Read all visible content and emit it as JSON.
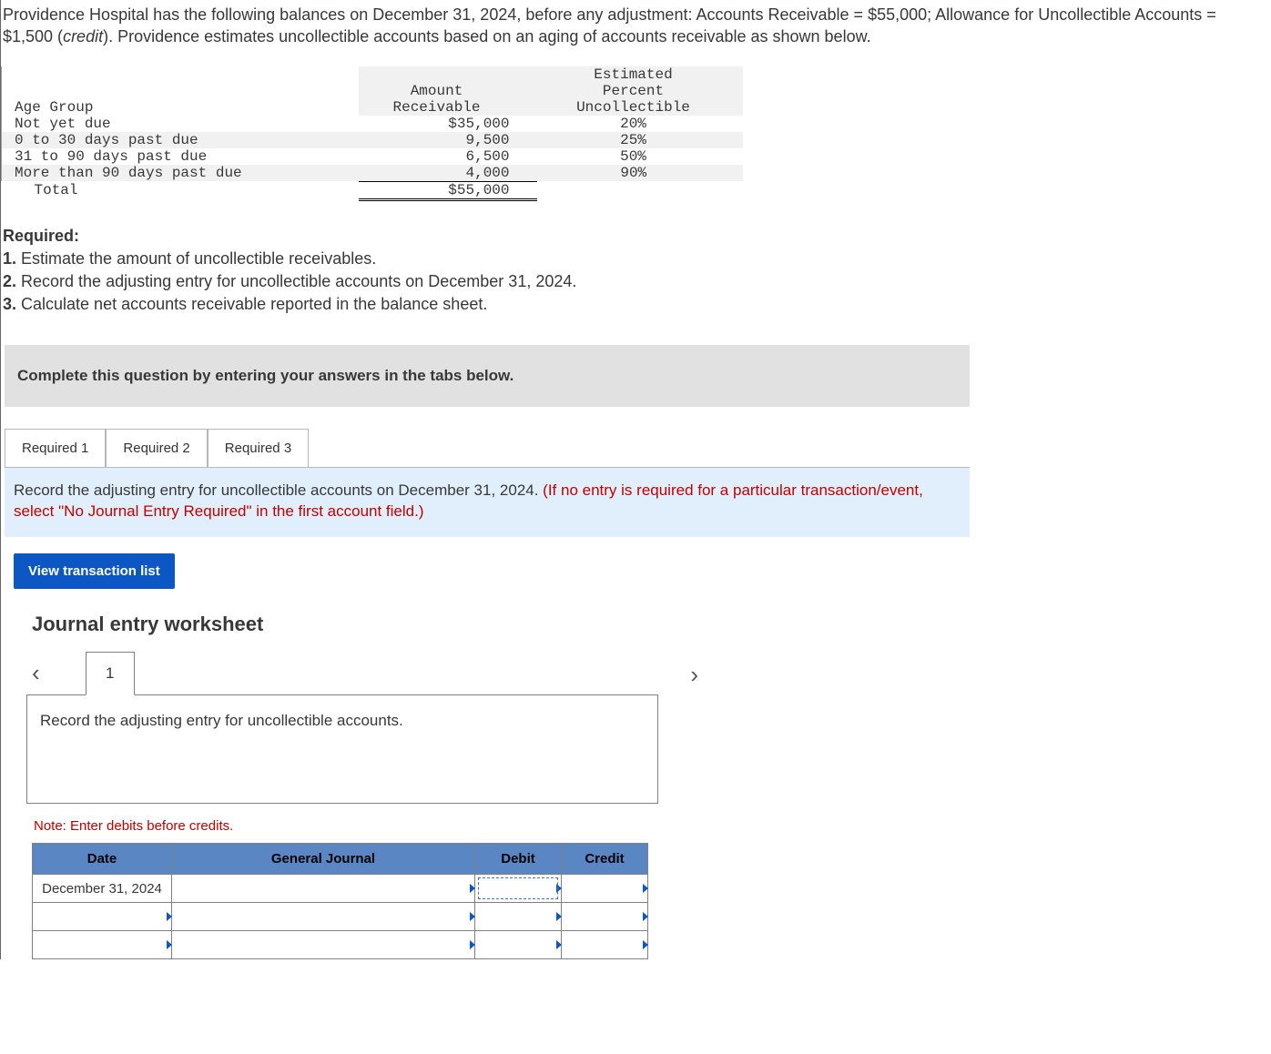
{
  "problem": {
    "p1": "Providence Hospital has the following balances on December 31, 2024, before any adjustment: Accounts Receivable = $55,000; Allowance for Uncollectible Accounts = $1,500 (",
    "p1_em": "credit",
    "p1_tail": "). Providence estimates uncollectible accounts based on an aging of accounts receivable as shown below."
  },
  "aging": {
    "headers": {
      "label": "Age Group",
      "amount": "Amount Receivable",
      "percent": "Estimated Percent Uncollectible"
    },
    "amount_hdr_l1": "Amount",
    "amount_hdr_l2": "Receivable",
    "percent_hdr_l1": "Estimated",
    "percent_hdr_l2": "Percent",
    "percent_hdr_l3": "Uncollectible",
    "rows": [
      {
        "label": "Not yet due",
        "amount": "$35,000",
        "percent": "20%"
      },
      {
        "label": "0 to 30 days past due",
        "amount": "9,500",
        "percent": "25%"
      },
      {
        "label": "31 to 90 days past due",
        "amount": "6,500",
        "percent": "50%"
      },
      {
        "label": "More than 90 days past due",
        "amount": "4,000",
        "percent": "90%"
      }
    ],
    "total_label": "Total",
    "total_amount": "$55,000"
  },
  "required": {
    "heading": "Required:",
    "items": [
      "Estimate the amount of uncollectible receivables.",
      "Record the adjusting entry for uncollectible accounts on December 31, 2024.",
      "Calculate net accounts receivable reported in the balance sheet."
    ]
  },
  "complete_bar": "Complete this question by entering your answers in the tabs below.",
  "tabs": [
    "Required 1",
    "Required 2",
    "Required 3"
  ],
  "active_tab_index": 1,
  "info_strip": {
    "black": "Record the adjusting entry for uncollectible accounts on December 31, 2024. ",
    "red": "(If no entry is required for a particular transaction/event, select \"No Journal Entry Required\" in the first account field.)"
  },
  "view_btn": "View transaction list",
  "journal": {
    "title": "Journal entry worksheet",
    "page": "1",
    "desc": "Record the adjusting entry for uncollectible accounts.",
    "note": "Note: Enter debits before credits.",
    "columns": [
      "Date",
      "General Journal",
      "Debit",
      "Credit"
    ],
    "rows": [
      {
        "date": "December 31, 2024",
        "gj": "",
        "debit": "",
        "credit": ""
      },
      {
        "date": "",
        "gj": "",
        "debit": "",
        "credit": ""
      },
      {
        "date": "",
        "gj": "",
        "debit": "",
        "credit": ""
      }
    ]
  },
  "colors": {
    "tab_header_bg": "#5a86c4",
    "info_bg": "#e1eefb",
    "btn_bg": "#0d57c5",
    "grey_bar": "#e1e1e1",
    "red": "#c00000"
  }
}
